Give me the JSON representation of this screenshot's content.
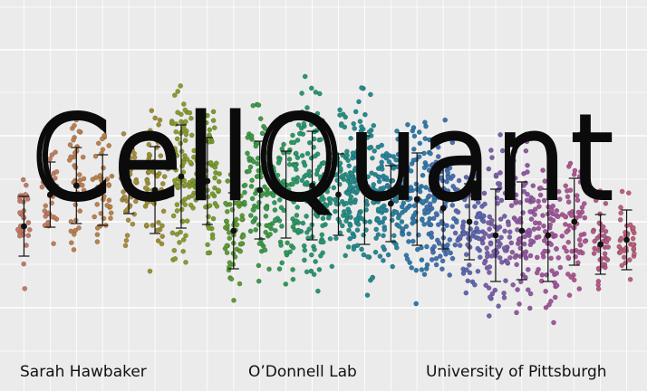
{
  "title": "CellQuant",
  "credits": {
    "author": "Sarah Hawbaker",
    "lab": "O’Donnell Lab",
    "institution": "University of Pittsburgh"
  },
  "colors": {
    "background": "#ebebeb",
    "grid": "#ffffff",
    "title_stroke": "#0b0b0b",
    "errorbar": "#111111"
  },
  "chart_data": {
    "type": "scatter",
    "style": "beeswarm with mean and error bars",
    "grid": true,
    "columns": [
      {
        "color": "#c27a68",
        "center": 250,
        "spread": 55,
        "width": 3,
        "count": 30
      },
      {
        "color": "#c17c5f",
        "center": 215,
        "spread": 60,
        "width": 4,
        "count": 38
      },
      {
        "color": "#bb7f52",
        "center": 205,
        "spread": 70,
        "width": 4,
        "count": 40
      },
      {
        "color": "#b8824a",
        "center": 210,
        "spread": 65,
        "width": 5,
        "count": 42
      },
      {
        "color": "#a88c3e",
        "center": 200,
        "spread": 60,
        "width": 4,
        "count": 44
      },
      {
        "color": "#9a8f33",
        "center": 210,
        "spread": 80,
        "width": 5,
        "count": 60
      },
      {
        "color": "#8a9a30",
        "center": 195,
        "spread": 95,
        "width": 7,
        "count": 90
      },
      {
        "color": "#779b2e",
        "center": 200,
        "spread": 80,
        "width": 6,
        "count": 70
      },
      {
        "color": "#5e9a36",
        "center": 255,
        "spread": 70,
        "width": 5,
        "count": 55
      },
      {
        "color": "#3f9a48",
        "center": 210,
        "spread": 90,
        "width": 8,
        "count": 95
      },
      {
        "color": "#2f9a5c",
        "center": 215,
        "spread": 80,
        "width": 7,
        "count": 80
      },
      {
        "color": "#2a9670",
        "center": 205,
        "spread": 100,
        "width": 9,
        "count": 115
      },
      {
        "color": "#279080",
        "center": 215,
        "spread": 75,
        "width": 8,
        "count": 85
      },
      {
        "color": "#258a8e",
        "center": 210,
        "spread": 100,
        "width": 9,
        "count": 110
      },
      {
        "color": "#2a839c",
        "center": 225,
        "spread": 70,
        "width": 8,
        "count": 90
      },
      {
        "color": "#3079aa",
        "center": 220,
        "spread": 85,
        "width": 9,
        "count": 105
      },
      {
        "color": "#4570b0",
        "center": 230,
        "spread": 75,
        "width": 8,
        "count": 90
      },
      {
        "color": "#5f68ae",
        "center": 245,
        "spread": 70,
        "width": 7,
        "count": 75
      },
      {
        "color": "#7a60aa",
        "center": 260,
        "spread": 85,
        "width": 7,
        "count": 80
      },
      {
        "color": "#915aa2",
        "center": 255,
        "spread": 90,
        "width": 7,
        "count": 80
      },
      {
        "color": "#a1579c",
        "center": 260,
        "spread": 85,
        "width": 7,
        "count": 75
      },
      {
        "color": "#ad5892",
        "center": 245,
        "spread": 80,
        "width": 6,
        "count": 60
      },
      {
        "color": "#b35a86",
        "center": 270,
        "spread": 55,
        "width": 4,
        "count": 40
      },
      {
        "color": "#b9607a",
        "center": 265,
        "spread": 55,
        "width": 4,
        "count": 38
      }
    ]
  }
}
